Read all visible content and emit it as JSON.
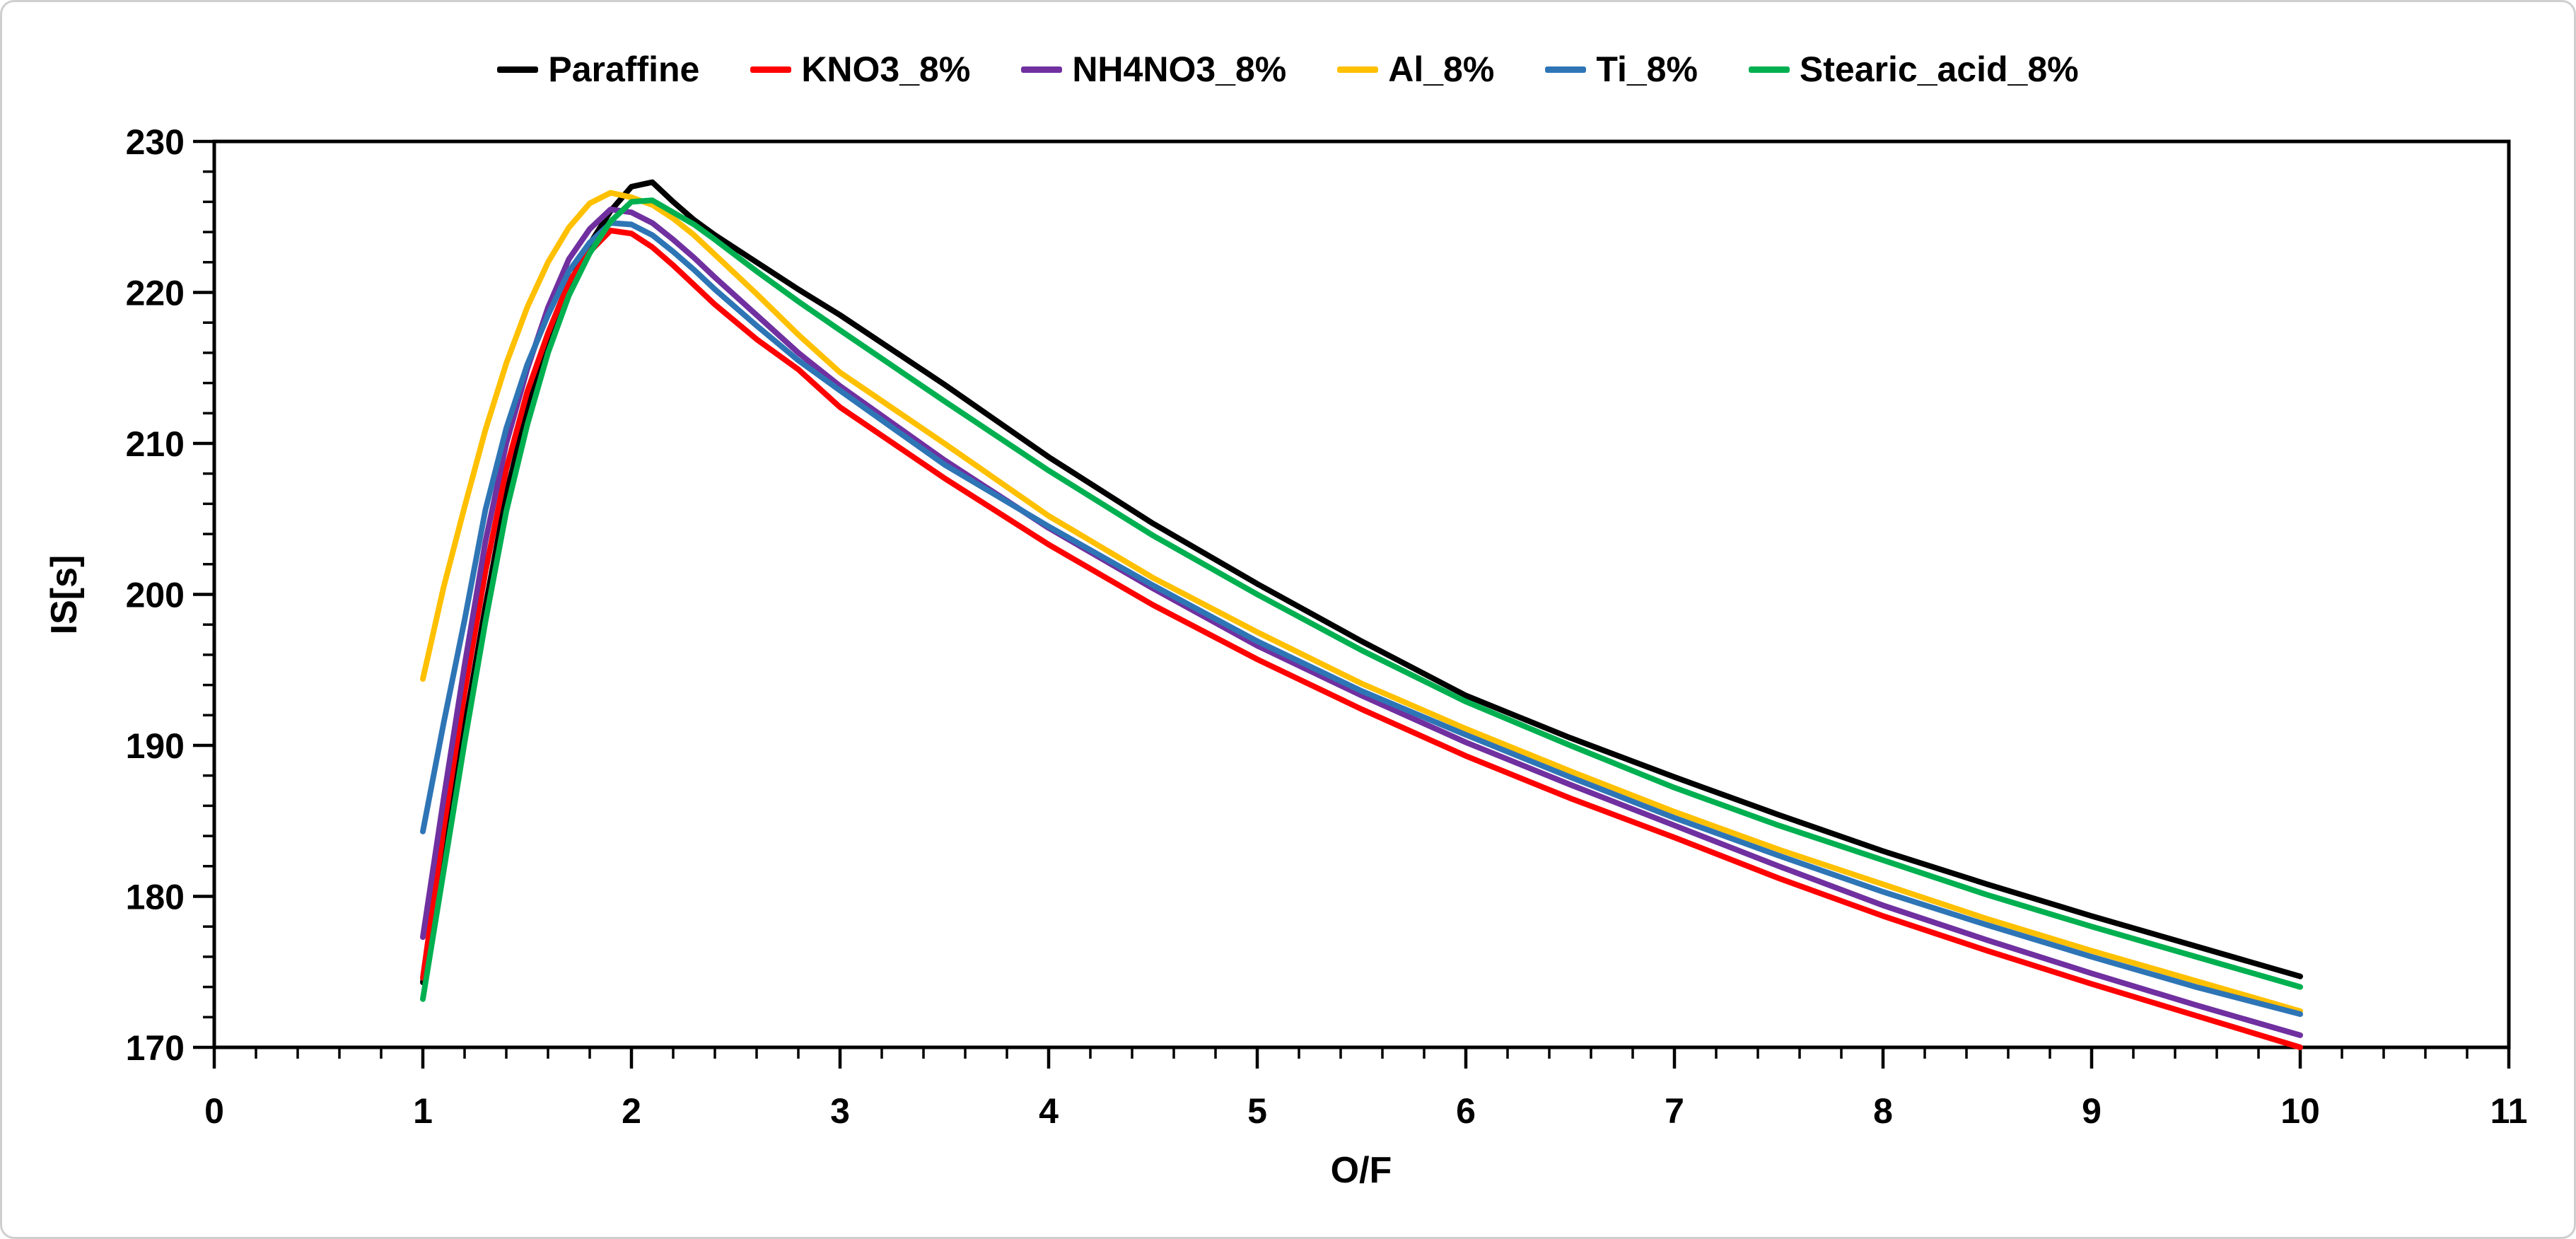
{
  "chart_data": {
    "type": "line",
    "title": "",
    "xlabel": "O/F",
    "ylabel": "IS[s]",
    "xlim": [
      0,
      11
    ],
    "ylim": [
      170,
      230
    ],
    "x_ticks": [
      0,
      1,
      2,
      3,
      4,
      5,
      6,
      7,
      8,
      9,
      10,
      11
    ],
    "y_ticks": [
      170,
      180,
      190,
      200,
      210,
      220,
      230
    ],
    "x_minor_step": 0.2,
    "y_minor_step": 2,
    "grid": "off",
    "legend_position": "top-center",
    "x": [
      1,
      1.1,
      1.2,
      1.3,
      1.4,
      1.5,
      1.6,
      1.7,
      1.8,
      1.9,
      2,
      2.1,
      2.2,
      2.3,
      2.4,
      2.6,
      2.8,
      3,
      3.5,
      4,
      4.5,
      5,
      5.5,
      6,
      6.5,
      7,
      7.5,
      8,
      8.5,
      9,
      9.5,
      10
    ],
    "series": [
      {
        "name": "Paraffine",
        "color": "#000000",
        "values": [
          174.3,
          182.8,
          191.2,
          199.2,
          206.6,
          212.3,
          216.9,
          220.5,
          223.2,
          225.4,
          227.0,
          227.3,
          226.0,
          224.8,
          223.8,
          222.0,
          220.2,
          218.5,
          213.9,
          209.1,
          204.7,
          200.7,
          196.9,
          193.3,
          190.5,
          187.9,
          185.4,
          183.0,
          180.8,
          178.7,
          176.7,
          174.7
        ]
      },
      {
        "name": "KNO3_8%",
        "color": "#FF0000",
        "values": [
          174.6,
          184.5,
          193.5,
          201.5,
          208.3,
          213.4,
          217.3,
          220.7,
          222.7,
          224.1,
          223.9,
          223.0,
          221.8,
          220.5,
          219.2,
          216.9,
          214.9,
          212.4,
          207.7,
          203.3,
          199.3,
          195.7,
          192.4,
          189.3,
          186.5,
          183.9,
          181.2,
          178.7,
          176.4,
          174.2,
          172.1,
          170.0
        ]
      },
      {
        "name": "NH4NO3_8%",
        "color": "#7030A0",
        "values": [
          177.3,
          186.5,
          195.3,
          203.5,
          210.0,
          214.9,
          219.0,
          222.2,
          224.2,
          225.5,
          225.3,
          224.6,
          223.5,
          222.3,
          221.0,
          218.5,
          216.0,
          213.8,
          208.9,
          204.4,
          200.4,
          196.6,
          193.3,
          190.2,
          187.4,
          184.7,
          182.0,
          179.4,
          177.1,
          174.9,
          172.8,
          170.8
        ]
      },
      {
        "name": "Al_8%",
        "color": "#FFC000",
        "values": [
          194.4,
          200.5,
          205.8,
          210.9,
          215.3,
          219.0,
          222.0,
          224.3,
          225.9,
          226.6,
          226.3,
          225.8,
          224.9,
          223.8,
          222.5,
          219.9,
          217.2,
          214.7,
          210.0,
          205.2,
          201.1,
          197.5,
          194.1,
          191.1,
          188.3,
          185.6,
          183.1,
          180.8,
          178.5,
          176.4,
          174.4,
          172.4
        ]
      },
      {
        "name": "Ti_8%",
        "color": "#2E75B6",
        "values": [
          184.3,
          191.5,
          198.3,
          205.6,
          211.0,
          215.2,
          218.5,
          221.4,
          223.3,
          224.6,
          224.5,
          223.8,
          222.7,
          221.5,
          220.2,
          217.8,
          215.5,
          213.5,
          208.6,
          204.5,
          200.6,
          196.9,
          193.6,
          190.7,
          187.9,
          185.2,
          182.7,
          180.3,
          178.1,
          176.0,
          174.0,
          172.2
        ]
      },
      {
        "name": "Stearic_acid_8%",
        "color": "#00B050",
        "values": [
          173.2,
          181.7,
          190.2,
          198.2,
          205.5,
          211.2,
          216.0,
          219.8,
          222.6,
          224.7,
          226.0,
          226.1,
          225.3,
          224.5,
          223.5,
          221.4,
          219.4,
          217.5,
          212.8,
          208.2,
          203.9,
          200.0,
          196.3,
          192.9,
          190.0,
          187.2,
          184.7,
          182.4,
          180.1,
          178.0,
          176.0,
          174.0
        ]
      }
    ]
  },
  "layout_colors": {
    "frame": "#000000",
    "background": "#ffffff",
    "outer_border": "#cfcfcf"
  }
}
